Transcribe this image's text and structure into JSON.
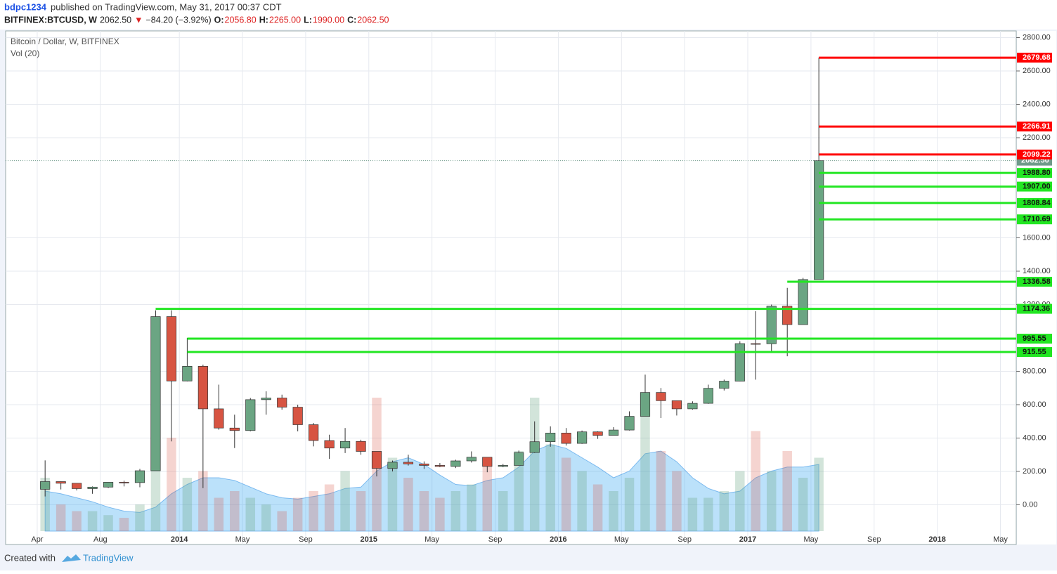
{
  "header": {
    "user": "bdpc1234",
    "published": "published on TradingView.com, May 31, 2017 00:37 CDT",
    "symbol": "BITFINEX:BTCUSD, W",
    "last": "2062.50",
    "arrow": "▼",
    "change": "−84.20 (−3.92%)",
    "o_label": "O:",
    "o": "2056.80",
    "h_label": "H:",
    "h": "2265.00",
    "l_label": "L:",
    "l": "1990.00",
    "c_label": "C:",
    "c": "2062.50"
  },
  "footer": {
    "created": "Created with",
    "brand": "TradingView"
  },
  "chart_data": {
    "type": "candlestick",
    "title": "Bitcoin / Dollar, W, BITFINEX",
    "volume_label": "Vol (20)",
    "up_color": "#6ba583",
    "down_color": "#d75442",
    "grid": true,
    "xlim": [
      "2013-02",
      "2018-06"
    ],
    "ylim": [
      -238,
      2840
    ],
    "vol_ylim": [
      0,
      100
    ],
    "xticks": [
      {
        "value": "2013-04",
        "label": "Apr"
      },
      {
        "value": "2013-08",
        "label": "Aug"
      },
      {
        "value": "2014-01",
        "label": "2014"
      },
      {
        "value": "2014-05",
        "label": "May"
      },
      {
        "value": "2014-09",
        "label": "Sep"
      },
      {
        "value": "2015-01",
        "label": "2015"
      },
      {
        "value": "2015-05",
        "label": "May"
      },
      {
        "value": "2015-09",
        "label": "Sep"
      },
      {
        "value": "2016-01",
        "label": "2016"
      },
      {
        "value": "2016-05",
        "label": "May"
      },
      {
        "value": "2016-09",
        "label": "Sep"
      },
      {
        "value": "2017-01",
        "label": "2017"
      },
      {
        "value": "2017-05",
        "label": "May"
      },
      {
        "value": "2017-09",
        "label": "Sep"
      },
      {
        "value": "2018-01",
        "label": "2018"
      },
      {
        "value": "2018-05",
        "label": "May"
      }
    ],
    "yticks": [
      {
        "value": 0,
        "label": "0.00"
      },
      {
        "value": 200,
        "label": "200.00"
      },
      {
        "value": 400,
        "label": "400.00"
      },
      {
        "value": 600,
        "label": "600.00"
      },
      {
        "value": 800,
        "label": "800.00"
      },
      {
        "value": 1200,
        "label": "1200.00"
      },
      {
        "value": 1400,
        "label": "1400.00"
      },
      {
        "value": 1600,
        "label": "1600.00"
      },
      {
        "value": 2200,
        "label": "2200.00"
      },
      {
        "value": 2400,
        "label": "2400.00"
      },
      {
        "value": 2600,
        "label": "2600.00"
      },
      {
        "value": 2800,
        "label": "2800.00"
      }
    ],
    "x": [
      "2013-04",
      "2013-05",
      "2013-06",
      "2013-07",
      "2013-08",
      "2013-09",
      "2013-10",
      "2013-11",
      "2013-12",
      "2014-01",
      "2014-02",
      "2014-03",
      "2014-04",
      "2014-05",
      "2014-06",
      "2014-07",
      "2014-08",
      "2014-09",
      "2014-10",
      "2014-11",
      "2014-12",
      "2015-01",
      "2015-02",
      "2015-03",
      "2015-04",
      "2015-05",
      "2015-06",
      "2015-07",
      "2015-08",
      "2015-09",
      "2015-10",
      "2015-11",
      "2015-12",
      "2016-01",
      "2016-02",
      "2016-03",
      "2016-04",
      "2016-05",
      "2016-06",
      "2016-07",
      "2016-08",
      "2016-09",
      "2016-10",
      "2016-11",
      "2016-12",
      "2017-01",
      "2017-02",
      "2017-03",
      "2017-04",
      "2017-05"
    ],
    "open": [
      93,
      139,
      129,
      97,
      106,
      135,
      133,
      204,
      1128,
      742,
      830,
      575,
      460,
      445,
      630,
      640,
      585,
      480,
      385,
      340,
      380,
      320,
      218,
      255,
      245,
      236,
      230,
      263,
      285,
      230,
      236,
      313,
      378,
      430,
      368,
      437,
      416,
      448,
      530,
      673,
      624,
      575,
      608,
      698,
      741,
      966,
      965,
      1190,
      1080,
      1350
    ],
    "high": [
      266,
      140,
      130,
      110,
      135,
      145,
      215,
      1165,
      1165,
      1000,
      840,
      720,
      540,
      640,
      680,
      660,
      600,
      490,
      420,
      460,
      390,
      320,
      265,
      300,
      260,
      250,
      270,
      320,
      285,
      245,
      325,
      500,
      470,
      460,
      445,
      440,
      465,
      560,
      780,
      700,
      625,
      620,
      720,
      750,
      980,
      1160,
      1200,
      1300,
      1360,
      2680
    ],
    "low": [
      50,
      92,
      86,
      66,
      101,
      110,
      105,
      204,
      380,
      740,
      100,
      450,
      340,
      440,
      540,
      570,
      440,
      350,
      275,
      310,
      300,
      170,
      200,
      235,
      215,
      225,
      220,
      253,
      195,
      225,
      235,
      310,
      348,
      355,
      365,
      395,
      415,
      445,
      530,
      520,
      535,
      570,
      605,
      685,
      740,
      750,
      920,
      890,
      1080,
      1350
    ],
    "close": [
      139,
      129,
      97,
      106,
      135,
      133,
      204,
      1128,
      742,
      830,
      575,
      460,
      445,
      630,
      640,
      585,
      480,
      385,
      340,
      380,
      320,
      218,
      255,
      245,
      236,
      230,
      263,
      285,
      230,
      236,
      313,
      378,
      430,
      368,
      437,
      416,
      448,
      530,
      673,
      624,
      575,
      608,
      698,
      741,
      966,
      965,
      1190,
      1080,
      1350,
      2062.5
    ],
    "volume": [
      40,
      20,
      15,
      15,
      12,
      10,
      20,
      60,
      70,
      40,
      45,
      25,
      30,
      25,
      20,
      15,
      25,
      30,
      35,
      45,
      30,
      100,
      55,
      40,
      30,
      25,
      30,
      35,
      50,
      30,
      60,
      100,
      65,
      55,
      45,
      35,
      30,
      40,
      95,
      60,
      45,
      25,
      25,
      30,
      45,
      75,
      45,
      60,
      40,
      55
    ],
    "volume_ma": [
      30,
      28,
      25,
      22,
      18,
      15,
      14,
      18,
      28,
      35,
      40,
      40,
      38,
      33,
      28,
      25,
      24,
      26,
      28,
      32,
      33,
      45,
      52,
      55,
      50,
      42,
      35,
      34,
      38,
      40,
      48,
      60,
      65,
      62,
      55,
      48,
      40,
      45,
      58,
      60,
      52,
      40,
      32,
      28,
      30,
      40,
      45,
      48,
      48,
      50
    ],
    "last_price": {
      "value": 2062.5,
      "label": "2062.50",
      "color": "#6f9a8a"
    },
    "levels": [
      {
        "value": 2679.68,
        "label": "2679.68",
        "color": "#ff0000",
        "start": "2017-05"
      },
      {
        "value": 2266.91,
        "label": "2266.91",
        "color": "#ff0000",
        "start": "2017-05"
      },
      {
        "value": 2099.22,
        "label": "2099.22",
        "color": "#ff0000",
        "start": "2017-05"
      },
      {
        "value": 1988.8,
        "label": "1988.80",
        "color": "#22e622",
        "start": "2017-05"
      },
      {
        "value": 1907,
        "label": "1907.00",
        "color": "#22e622",
        "start": "2017-05"
      },
      {
        "value": 1808.84,
        "label": "1808.84",
        "color": "#22e622",
        "start": "2017-05"
      },
      {
        "value": 1710.69,
        "label": "1710.69",
        "color": "#22e622",
        "start": "2017-05"
      },
      {
        "value": 1336.58,
        "label": "1336.58",
        "color": "#22e622",
        "start": "2017-03"
      },
      {
        "value": 1174.36,
        "label": "1174.36",
        "color": "#22e622",
        "start": "2013-11"
      },
      {
        "value": 995.55,
        "label": "995.55",
        "color": "#22e622",
        "start": "2014-01"
      },
      {
        "value": 915.55,
        "label": "915.55",
        "color": "#22e622",
        "start": "2014-01"
      }
    ]
  }
}
